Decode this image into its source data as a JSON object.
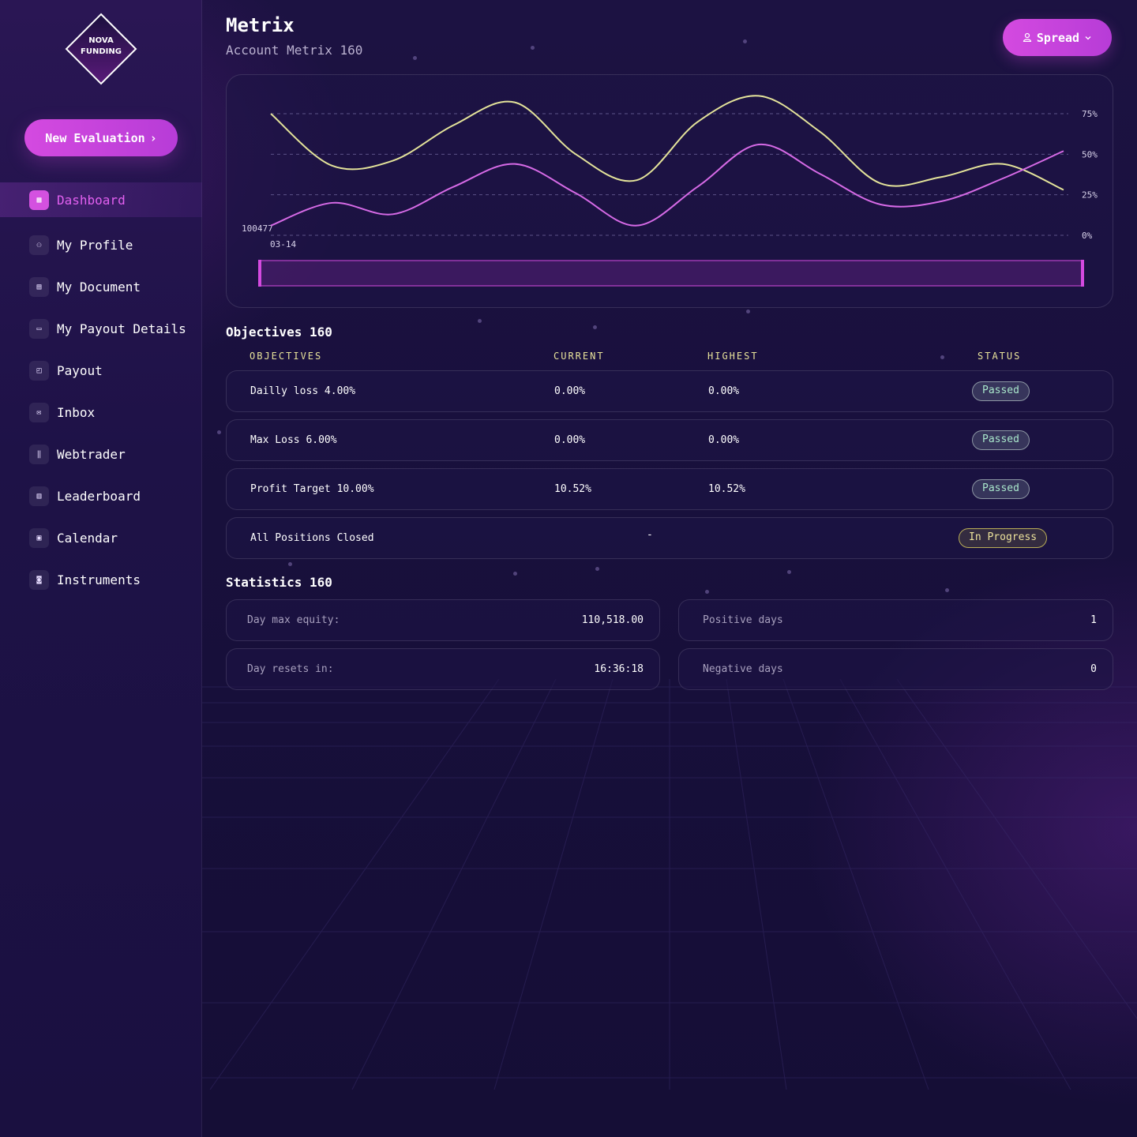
{
  "brand": {
    "line1": "NOVA",
    "line2": "FUNDING"
  },
  "sidebar": {
    "new_evaluation_label": "New Evaluation",
    "items": [
      {
        "label": "Dashboard",
        "icon": "dashboard-icon",
        "glyph": "▦"
      },
      {
        "label": "My Profile",
        "icon": "users-icon",
        "glyph": "⚇"
      },
      {
        "label": "My Document",
        "icon": "document-icon",
        "glyph": "▤"
      },
      {
        "label": "My Payout Details",
        "icon": "card-icon",
        "glyph": "▭"
      },
      {
        "label": "Payout",
        "icon": "wallet-icon",
        "glyph": "◰"
      },
      {
        "label": "Inbox",
        "icon": "mail-icon",
        "glyph": "✉"
      },
      {
        "label": "Webtrader",
        "icon": "candles-icon",
        "glyph": "‖"
      },
      {
        "label": "Leaderboard",
        "icon": "bar-chart-icon",
        "glyph": "▥"
      },
      {
        "label": "Calendar",
        "icon": "calendar-icon",
        "glyph": "▣"
      },
      {
        "label": "Instruments",
        "icon": "instruments-icon",
        "glyph": "◙"
      }
    ]
  },
  "header": {
    "title": "Metrix",
    "subtitle": "Account Metrix 160",
    "account_button_label": "Spread"
  },
  "chart_data": {
    "type": "line",
    "x_start_label": "03-14",
    "y_left_label": "100477",
    "y_right_ticks": [
      "75%",
      "50%",
      "25%",
      "0%"
    ],
    "ylim": [
      0,
      75
    ],
    "grid": true,
    "series": [
      {
        "color": "#e4e39a",
        "values": [
          75,
          43,
          46,
          68,
          82,
          50,
          34,
          70,
          86,
          64,
          32,
          36,
          44,
          28
        ]
      },
      {
        "color": "#d66ae6",
        "values": [
          6,
          20,
          13,
          30,
          44,
          26,
          6,
          30,
          56,
          38,
          19,
          21,
          35,
          52
        ]
      }
    ],
    "colors": {
      "line1": "#e4e39a",
      "line2": "#d66ae6",
      "accent": "#d44ae0"
    }
  },
  "objectives": {
    "title": "Objectives 160",
    "headers": {
      "objectives": "OBJECTIVES",
      "current": "CURRENT",
      "highest": "HIGHEST",
      "status": "STATUS"
    },
    "rows": [
      {
        "name": "Dailly loss 4.00%",
        "current": "0.00%",
        "highest": "0.00%",
        "status": "Passed"
      },
      {
        "name": "Max Loss 6.00%",
        "current": "0.00%",
        "highest": "0.00%",
        "status": "Passed"
      },
      {
        "name": "Profit Target 10.00%",
        "current": "10.52%",
        "highest": "10.52%",
        "status": "Passed"
      },
      {
        "name": "All Positions Closed",
        "current": "-",
        "highest": "",
        "status": "In Progress"
      }
    ]
  },
  "statistics": {
    "title": "Statistics 160",
    "items": [
      {
        "label": "Day max equity:",
        "value": "110,518.00"
      },
      {
        "label": "Positive days",
        "value": "1"
      },
      {
        "label": "Day resets in:",
        "value": "16:36:18"
      },
      {
        "label": "Negative days",
        "value": "0"
      }
    ]
  }
}
